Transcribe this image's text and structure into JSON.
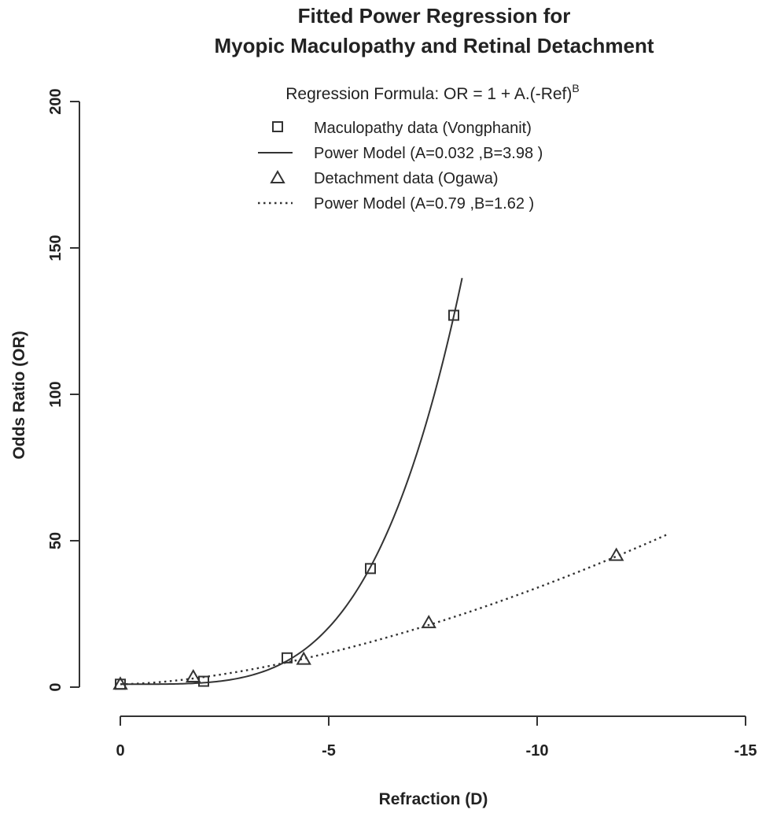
{
  "chart_data": {
    "type": "scatter",
    "title_line1": "Fitted Power Regression for",
    "title_line2": "Myopic Maculopathy and Retinal Detachment",
    "subtitle_prefix": "Regression Formula: OR = 1 + A.(-Ref)",
    "subtitle_superscript": "B",
    "xlabel": "Refraction (D)",
    "ylabel": "Odds Ratio (OR)",
    "xlim": [
      0,
      -15
    ],
    "ylim": [
      0,
      200
    ],
    "x_ticks": [
      {
        "value": 0,
        "label": "0"
      },
      {
        "value": -5,
        "label": "-5"
      },
      {
        "value": -10,
        "label": "-10"
      },
      {
        "value": -15,
        "label": "-15"
      }
    ],
    "y_ticks": [
      {
        "value": 0,
        "label": "0"
      },
      {
        "value": 50,
        "label": "50"
      },
      {
        "value": 100,
        "label": "100"
      },
      {
        "value": 150,
        "label": "150"
      },
      {
        "value": 200,
        "label": "200"
      }
    ],
    "legend": [
      {
        "label": "Maculopathy data (Vongphanit)",
        "kind": "square"
      },
      {
        "label": "Power Model (A=0.032 ,B=3.98 )",
        "kind": "solid"
      },
      {
        "label": "Detachment data (Ogawa)",
        "kind": "triangle"
      },
      {
        "label": "Power Model (A=0.79 ,B=1.62 )",
        "kind": "dotted"
      }
    ],
    "series": [
      {
        "kind": "points",
        "marker": "square",
        "points": [
          {
            "x": 0,
            "y": 1
          },
          {
            "x": -2,
            "y": 2
          },
          {
            "x": -4,
            "y": 10
          },
          {
            "x": -6,
            "y": 40.5
          },
          {
            "x": -8,
            "y": 127
          }
        ]
      },
      {
        "kind": "curve",
        "style": "solid",
        "A": 0.032,
        "B": 3.98,
        "x_range": [
          0,
          -8.2
        ]
      },
      {
        "kind": "points",
        "marker": "triangle",
        "points": [
          {
            "x": 0,
            "y": 1
          },
          {
            "x": -1.75,
            "y": 3.5
          },
          {
            "x": -4.4,
            "y": 9.5
          },
          {
            "x": -7.4,
            "y": 22
          },
          {
            "x": -11.9,
            "y": 45
          }
        ]
      },
      {
        "kind": "curve",
        "style": "dotted",
        "A": 0.79,
        "B": 1.62,
        "x_range": [
          0,
          -13.1
        ]
      }
    ],
    "colors": {
      "ink": "#333333",
      "background": "#ffffff"
    }
  }
}
